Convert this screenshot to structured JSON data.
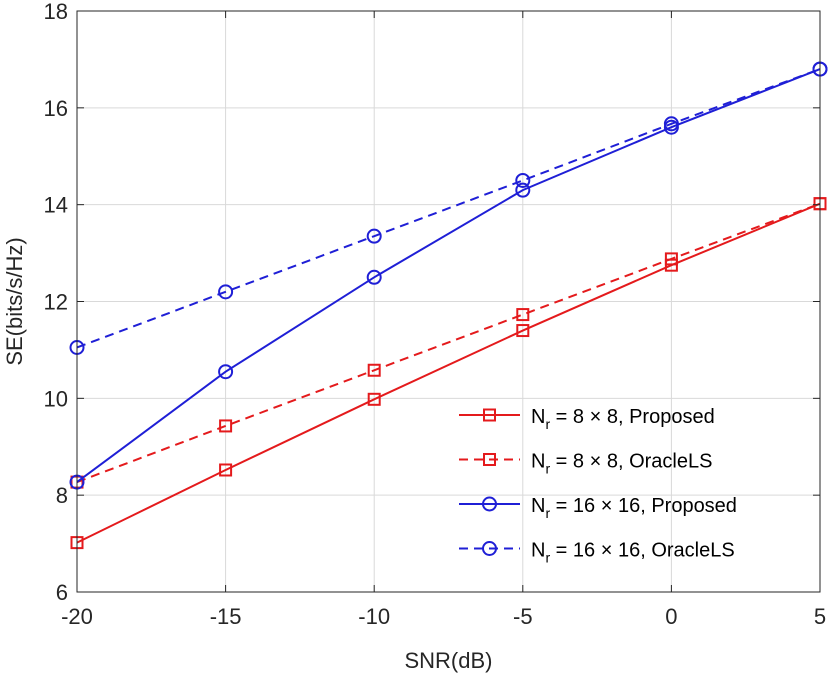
{
  "chart_data": {
    "type": "line",
    "title": "",
    "xlabel": "SNR(dB)",
    "ylabel": "SE(bits/s/Hz)",
    "x": [
      -20,
      -15,
      -10,
      -5,
      0,
      5
    ],
    "xlim": [
      -20,
      5
    ],
    "ylim": [
      6,
      18
    ],
    "xticks": [
      -20,
      -15,
      -10,
      -5,
      0,
      5
    ],
    "xtick_labels": [
      "-20",
      "-15",
      "-10",
      "-5",
      "0",
      "5"
    ],
    "yticks": [
      6,
      8,
      10,
      12,
      14,
      16,
      18
    ],
    "ytick_labels": [
      "6",
      "8",
      "10",
      "12",
      "14",
      "16",
      "18"
    ],
    "grid": true,
    "legend_position": "bottom-right",
    "series": [
      {
        "name": "Nr = 8 × 8, Proposed",
        "legend_main": "N",
        "legend_sub": "r",
        "legend_rest": " = 8 × 8, Proposed",
        "color": "#e41a1c",
        "line_style": "solid",
        "marker": "square",
        "values": [
          7.02,
          8.52,
          9.98,
          11.4,
          12.75,
          14.02
        ]
      },
      {
        "name": "Nr = 8 × 8, OracleLS",
        "legend_main": "N",
        "legend_sub": "r",
        "legend_rest": " = 8 × 8, OracleLS",
        "color": "#e41a1c",
        "line_style": "dashed",
        "marker": "square",
        "values": [
          8.27,
          9.43,
          10.58,
          11.73,
          12.88,
          14.02
        ]
      },
      {
        "name": "Nr = 16 × 16, Proposed",
        "legend_main": "N",
        "legend_sub": "r",
        "legend_rest": " = 16 × 16, Proposed",
        "color": "#1f1fd6",
        "line_style": "solid",
        "marker": "circle",
        "values": [
          8.27,
          10.55,
          12.5,
          14.3,
          15.6,
          16.8
        ]
      },
      {
        "name": "Nr = 16 × 16, OracleLS",
        "legend_main": "N",
        "legend_sub": "r",
        "legend_rest": " = 16 × 16, OracleLS",
        "color": "#1f1fd6",
        "line_style": "dashed",
        "marker": "circle",
        "values": [
          11.05,
          12.2,
          13.35,
          14.5,
          15.67,
          16.8
        ]
      }
    ]
  }
}
